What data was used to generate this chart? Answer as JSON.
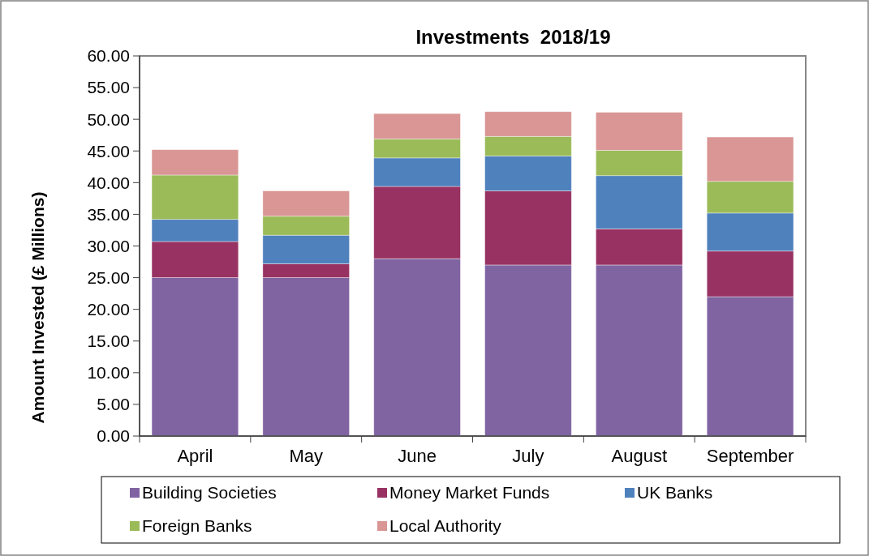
{
  "chart_data": {
    "type": "bar",
    "title": "Investments  2018/19",
    "ylabel": "Amount Invested (£ Millions)",
    "stacked": true,
    "categories": [
      "April",
      "May",
      "June",
      "July",
      "August",
      "September"
    ],
    "series": [
      {
        "name": "Building Societies",
        "color": "#8064a2",
        "values": [
          25,
          25,
          28,
          27,
          27,
          22
        ]
      },
      {
        "name": "Money Market Funds",
        "color": "#983262",
        "values": [
          5.7,
          2.2,
          11.4,
          11.7,
          5.7,
          7.2
        ]
      },
      {
        "name": "UK Banks",
        "color": "#4f81bd",
        "values": [
          3.5,
          4.5,
          4.5,
          5.5,
          8.4,
          6.0
        ]
      },
      {
        "name": "Foreign Banks",
        "color": "#9bbb59",
        "values": [
          7.0,
          3.0,
          3.0,
          3.1,
          4.0,
          5.0
        ]
      },
      {
        "name": "Local Authority",
        "color": "#d99694",
        "values": [
          4.0,
          4.0,
          4.0,
          3.9,
          6.0,
          7.0
        ]
      }
    ],
    "ylim": [
      0,
      60
    ],
    "yticks": [
      {
        "value": 0,
        "label": "0.00"
      },
      {
        "value": 5,
        "label": "5.00"
      },
      {
        "value": 10,
        "label": "10.00"
      },
      {
        "value": 15,
        "label": "15.00"
      },
      {
        "value": 20,
        "label": "20.00"
      },
      {
        "value": 25,
        "label": "25.00"
      },
      {
        "value": 30,
        "label": "30.00"
      },
      {
        "value": 35,
        "label": "35.00"
      },
      {
        "value": 40,
        "label": "40.00"
      },
      {
        "value": 45,
        "label": "45.00"
      },
      {
        "value": 50,
        "label": "50.00"
      },
      {
        "value": 55,
        "label": "55.00"
      },
      {
        "value": 60,
        "label": "60.00"
      }
    ],
    "grid": false,
    "legend": "bottom"
  }
}
